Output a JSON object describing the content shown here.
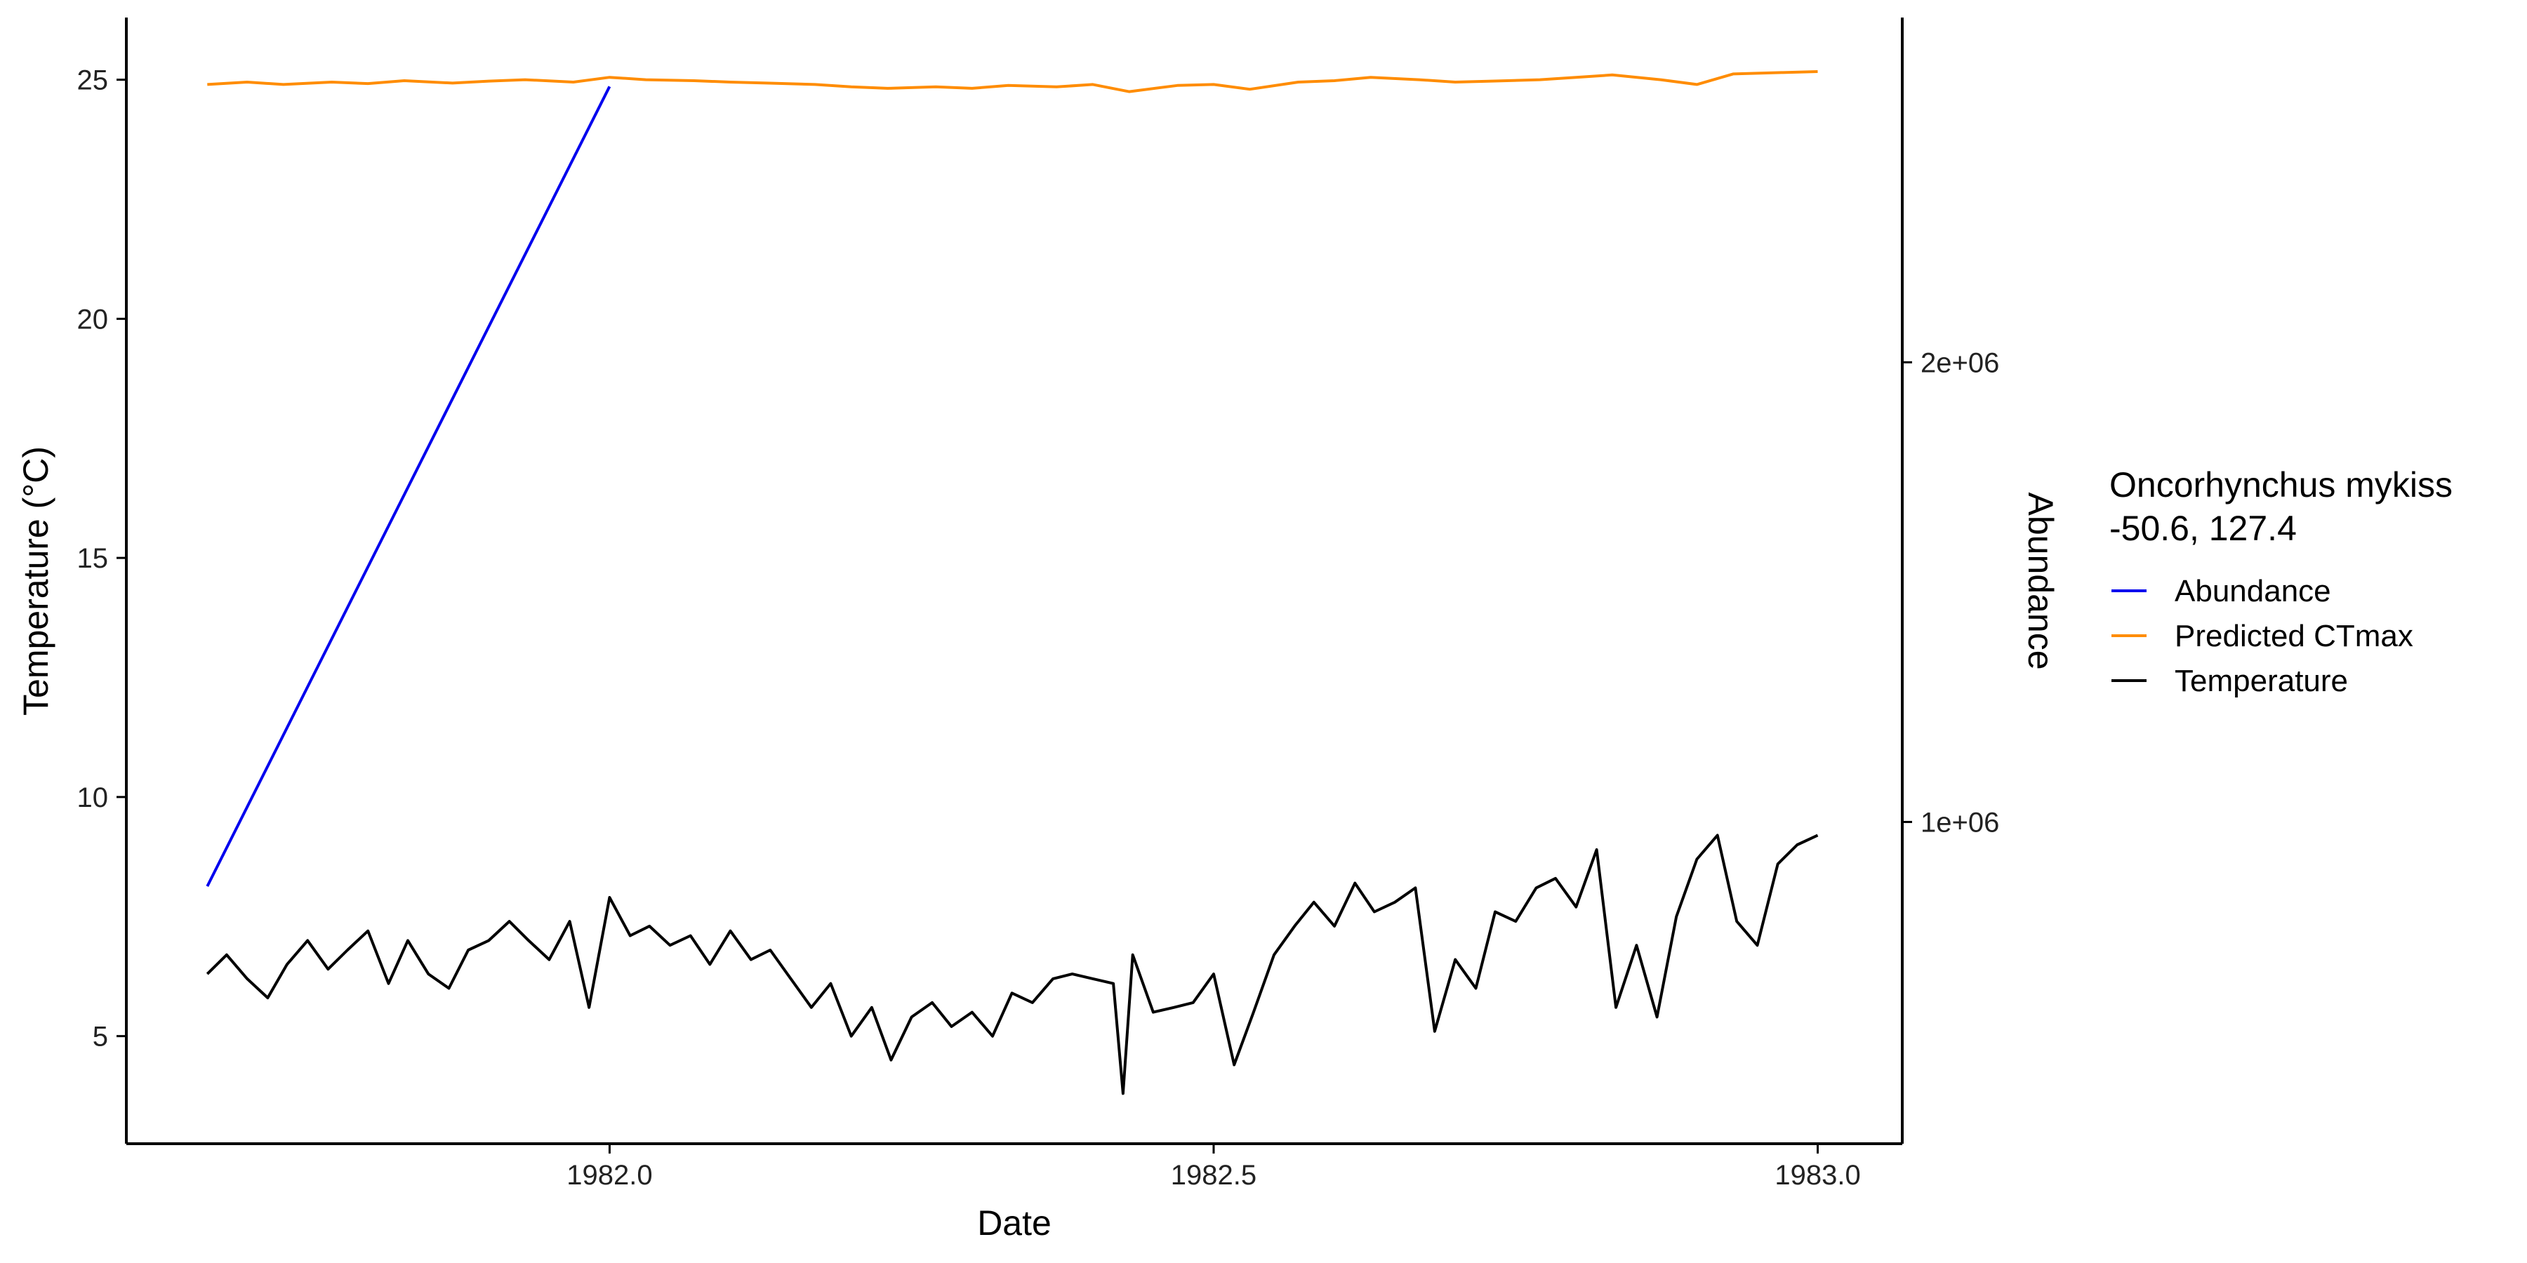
{
  "chart_data": {
    "type": "line",
    "xlabel": "Date",
    "ylabel": "Temperature (°C)",
    "y2label": "Abundance",
    "xlim": [
      1981.6,
      1983.07
    ],
    "ylim": [
      2.75,
      26.3
    ],
    "y2lim": [
      300000,
      2750000
    ],
    "x_ticks": [
      1982.0,
      1982.5,
      1983.0
    ],
    "x_tick_labels": [
      "1982.0",
      "1982.5",
      "1983.0"
    ],
    "y_ticks": [
      5,
      10,
      15,
      20,
      25
    ],
    "y_tick_labels": [
      "5",
      "10",
      "15",
      "20",
      "25"
    ],
    "y2_ticks": [
      1000000,
      2000000
    ],
    "y2_tick_labels": [
      "1e+06",
      "2e+06"
    ],
    "grid": false,
    "legend_position": "right",
    "legend": {
      "title": "Oncorhynchus mykiss",
      "subtitle": "-50.6, 127.4"
    },
    "colors": {
      "abundance": "#0000EE",
      "ctmax": "#FF8C00",
      "temperature": "#000000",
      "y2_title": "#0000FF"
    },
    "series": [
      {
        "name": "Abundance",
        "axis": "right",
        "color": "#0000EE",
        "x": [
          1981.667,
          1982.0
        ],
        "y": [
          860000,
          2600000
        ]
      },
      {
        "name": "Predicted CTmax",
        "axis": "left",
        "color": "#FF8C00",
        "x": [
          1981.667,
          1981.7,
          1981.73,
          1981.77,
          1981.8,
          1981.83,
          1981.87,
          1981.9,
          1981.93,
          1981.97,
          1982.0,
          1982.03,
          1982.07,
          1982.1,
          1982.13,
          1982.17,
          1982.2,
          1982.23,
          1982.27,
          1982.3,
          1982.33,
          1982.37,
          1982.4,
          1982.43,
          1982.47,
          1982.5,
          1982.53,
          1982.57,
          1982.6,
          1982.63,
          1982.67,
          1982.7,
          1982.73,
          1982.77,
          1982.8,
          1982.83,
          1982.87,
          1982.9,
          1982.93,
          1982.97,
          1983.0
        ],
        "y": [
          24.9,
          24.95,
          24.9,
          24.95,
          24.92,
          24.98,
          24.93,
          24.97,
          25.0,
          24.95,
          25.05,
          25.0,
          24.98,
          24.95,
          24.93,
          24.9,
          24.85,
          24.82,
          24.85,
          24.82,
          24.88,
          24.85,
          24.9,
          24.75,
          24.88,
          24.9,
          24.8,
          24.95,
          24.98,
          25.05,
          25.0,
          24.95,
          24.97,
          25.0,
          25.05,
          25.1,
          25.0,
          24.9,
          25.12,
          25.15,
          25.17
        ]
      },
      {
        "name": "Temperature",
        "axis": "left",
        "color": "#000000",
        "x": [
          1981.667,
          1981.683,
          1981.7,
          1981.717,
          1981.733,
          1981.75,
          1981.767,
          1981.783,
          1981.8,
          1981.817,
          1981.833,
          1981.85,
          1981.867,
          1981.883,
          1981.9,
          1981.917,
          1981.933,
          1981.95,
          1981.967,
          1981.983,
          1982.0,
          1982.017,
          1982.033,
          1982.05,
          1982.067,
          1982.083,
          1982.1,
          1982.117,
          1982.133,
          1982.15,
          1982.167,
          1982.183,
          1982.2,
          1982.217,
          1982.233,
          1982.25,
          1982.267,
          1982.283,
          1982.3,
          1982.317,
          1982.333,
          1982.35,
          1982.367,
          1982.383,
          1982.4,
          1982.417,
          1982.425,
          1982.433,
          1982.45,
          1982.467,
          1982.483,
          1982.5,
          1982.517,
          1982.533,
          1982.55,
          1982.567,
          1982.583,
          1982.6,
          1982.617,
          1982.633,
          1982.65,
          1982.667,
          1982.683,
          1982.7,
          1982.717,
          1982.733,
          1982.75,
          1982.767,
          1982.783,
          1982.8,
          1982.817,
          1982.833,
          1982.85,
          1982.867,
          1982.883,
          1982.9,
          1982.917,
          1982.933,
          1982.95,
          1982.967,
          1982.983,
          1983.0
        ],
        "y": [
          6.3,
          6.7,
          6.2,
          5.8,
          6.5,
          7.0,
          6.4,
          6.8,
          7.2,
          6.1,
          7.0,
          6.3,
          6.0,
          6.8,
          7.0,
          7.4,
          7.0,
          6.6,
          7.4,
          5.6,
          7.9,
          7.1,
          7.3,
          6.9,
          7.1,
          6.5,
          7.2,
          6.6,
          6.8,
          6.2,
          5.6,
          6.1,
          5.0,
          5.6,
          4.5,
          5.4,
          5.7,
          5.2,
          5.5,
          5.0,
          5.9,
          5.7,
          6.2,
          6.3,
          6.2,
          6.1,
          3.8,
          6.7,
          5.5,
          5.6,
          5.7,
          6.3,
          4.4,
          5.5,
          6.7,
          7.3,
          7.8,
          7.3,
          8.2,
          7.6,
          7.8,
          8.1,
          5.1,
          6.6,
          6.0,
          7.6,
          7.4,
          8.1,
          8.3,
          7.7,
          8.9,
          5.6,
          6.9,
          5.4,
          7.5,
          8.7,
          9.2,
          7.4,
          6.9,
          8.6,
          9.0,
          9.2
        ]
      }
    ]
  }
}
